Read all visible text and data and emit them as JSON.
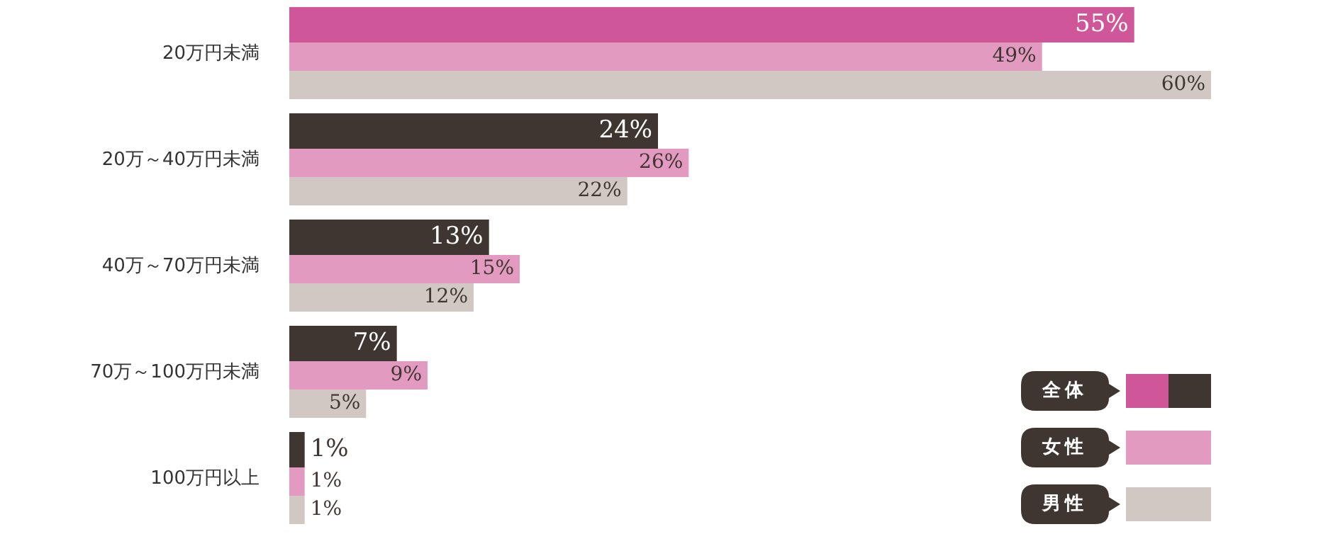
{
  "chart_data": {
    "type": "bar",
    "orientation": "horizontal",
    "categories": [
      "20万円未満",
      "20万～40万円未満",
      "40万～70万円未満",
      "70万～100万円未満",
      "100万円以上"
    ],
    "legend": "bottom right",
    "series": [
      {
        "name": "全体",
        "color": "#3f3632",
        "colors": [
          "#cf5799",
          "#3f3632",
          "#3f3632",
          "#3f3632",
          "#3f3632"
        ],
        "values": [
          55,
          24,
          13,
          7,
          1
        ],
        "value_labels": [
          "55%",
          "24%",
          "13%",
          "7%",
          "1%"
        ]
      },
      {
        "name": "女性",
        "color": "#e29ac1",
        "values": [
          49,
          26,
          15,
          9,
          1
        ],
        "value_labels": [
          "49%",
          "26%",
          "15%",
          "9%",
          "1%"
        ]
      },
      {
        "name": "男性",
        "color": "#d1c8c3",
        "values": [
          60,
          22,
          12,
          5,
          1
        ],
        "value_labels": [
          "60%",
          "22%",
          "12%",
          "5%",
          "1%"
        ]
      }
    ]
  }
}
